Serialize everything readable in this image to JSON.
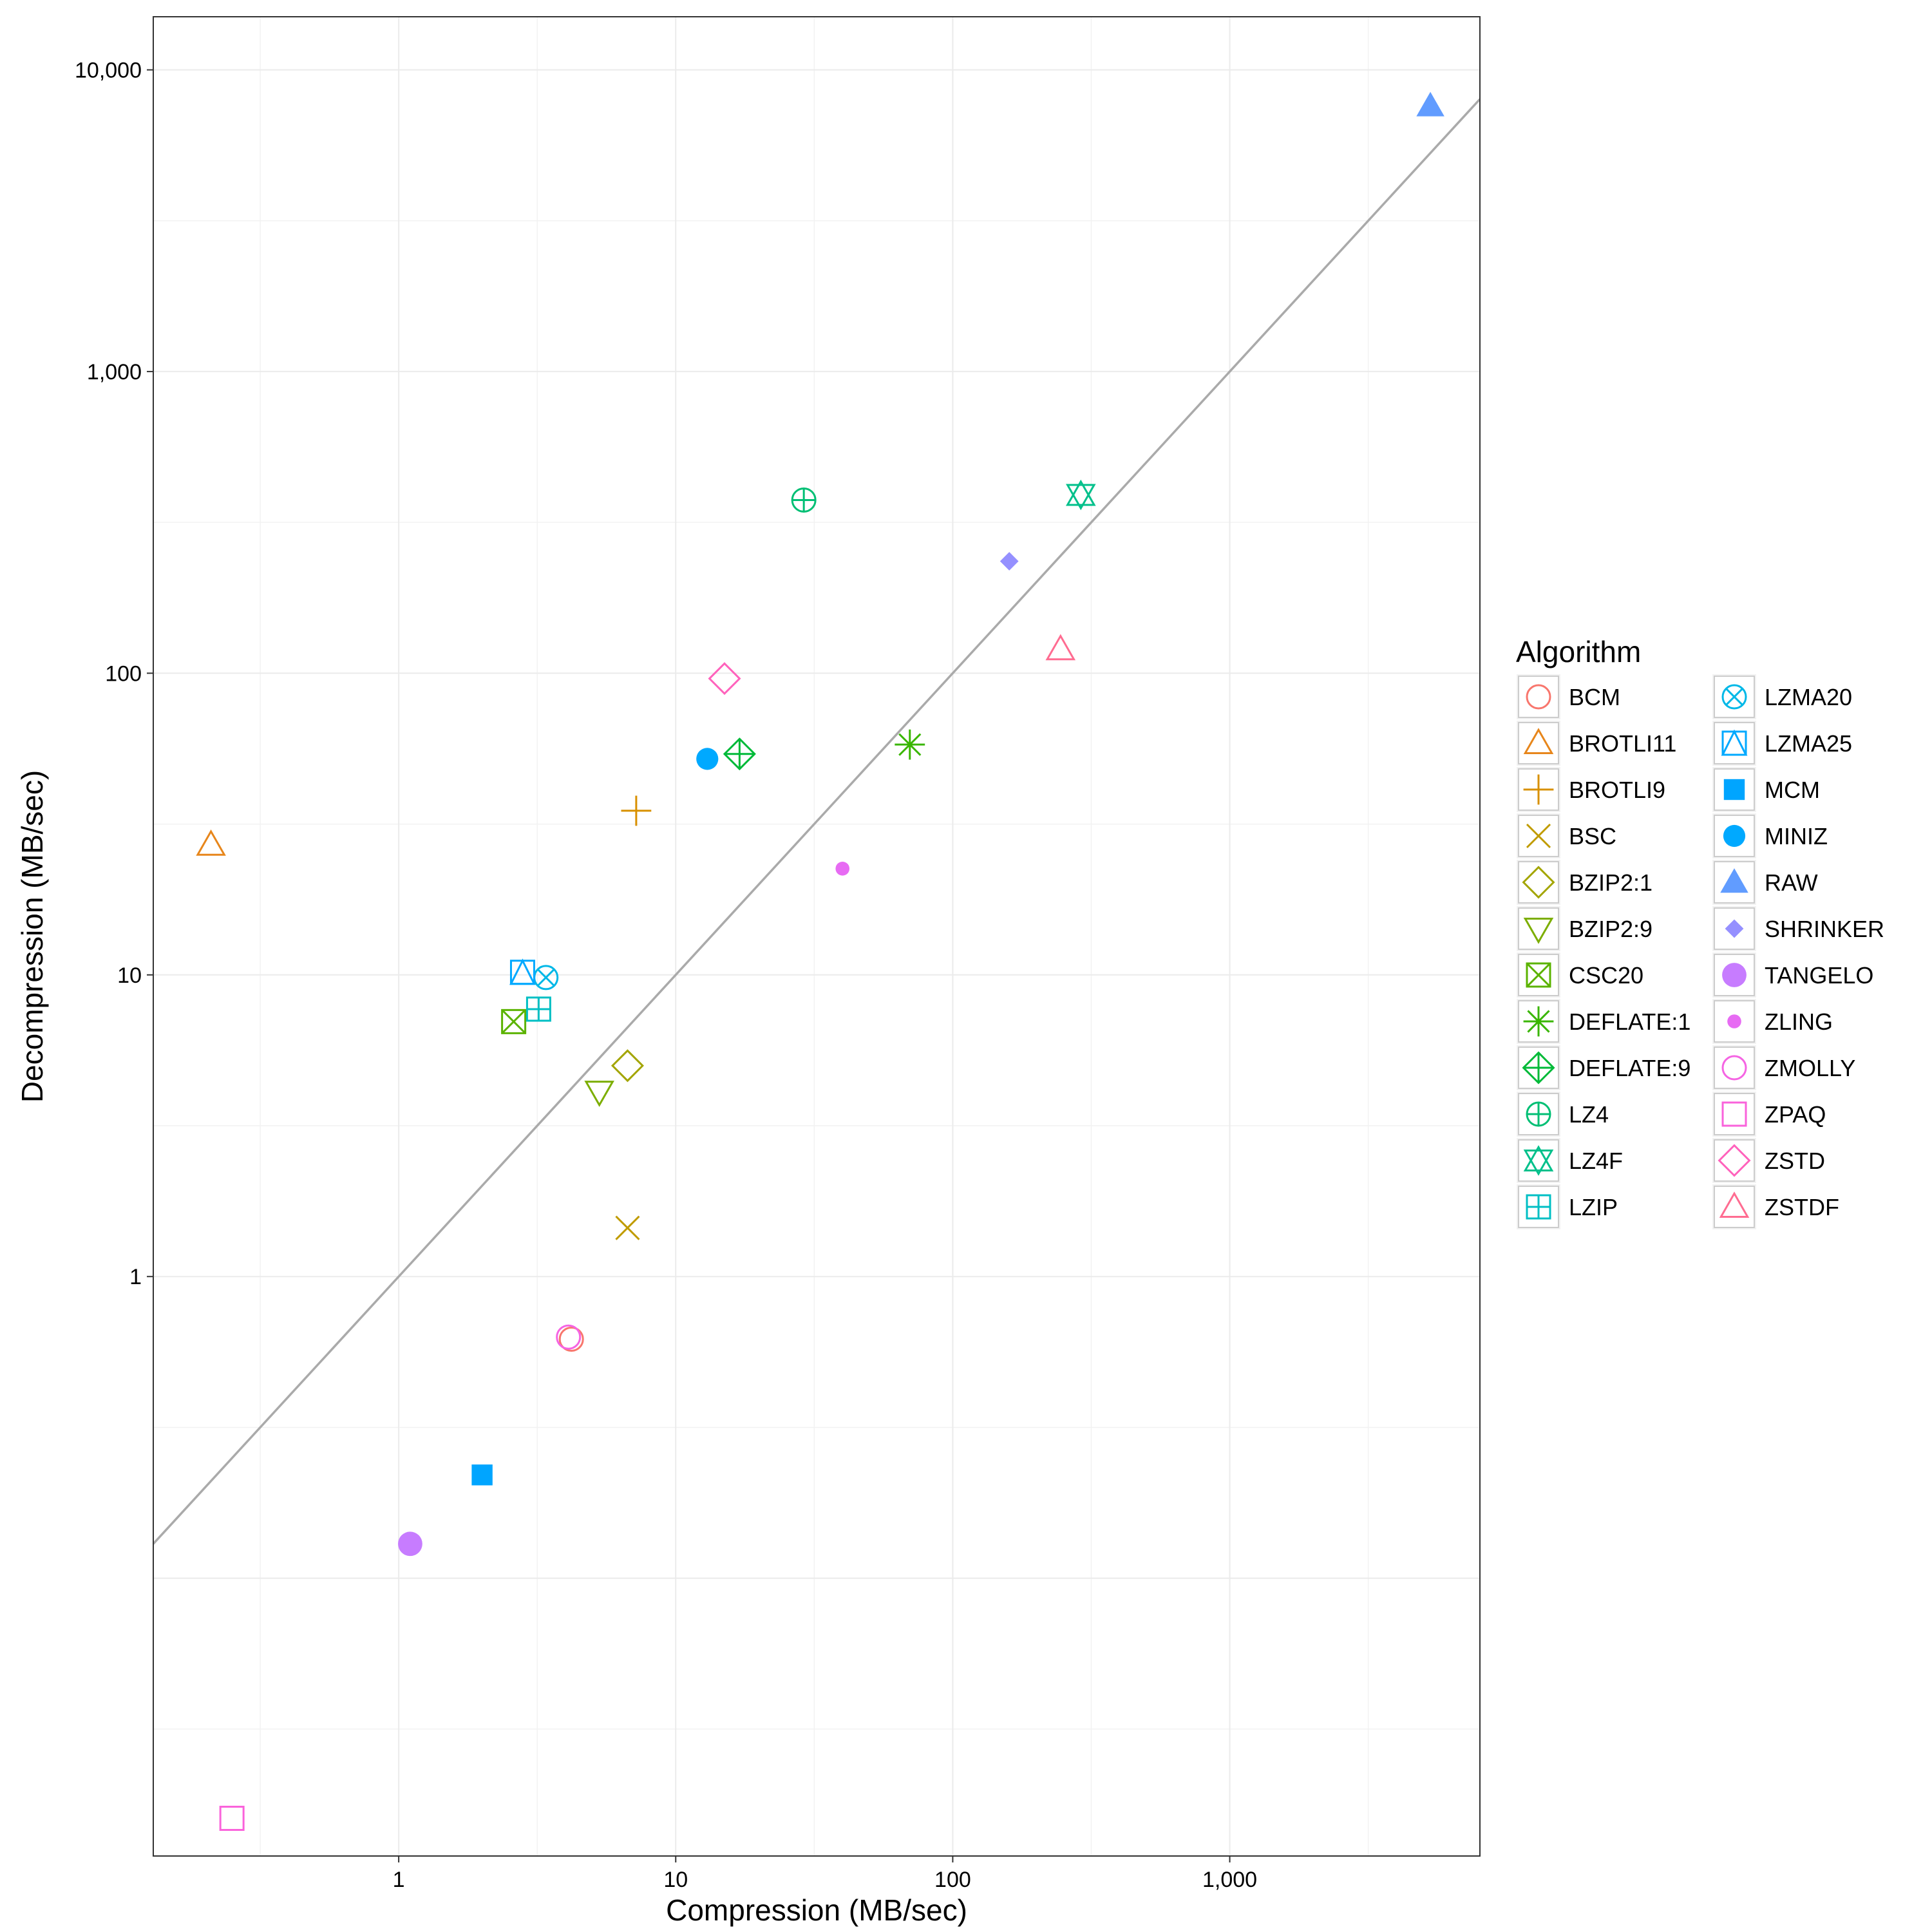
{
  "chart_data": {
    "type": "scatter",
    "title": "",
    "xlabel": "Compression (MB/sec)",
    "ylabel": "Decompression (MB/sec)",
    "xscale": "log10",
    "yscale": "log10",
    "xlim": [
      0.13,
      8000
    ],
    "ylim": [
      0.012,
      15000
    ],
    "x_ticks": [
      {
        "value": 1,
        "label": "1"
      },
      {
        "value": 10,
        "label": "10"
      },
      {
        "value": 100,
        "label": "100"
      },
      {
        "value": 1000,
        "label": "1,000"
      }
    ],
    "y_ticks": [
      {
        "value": 1,
        "label": "1"
      },
      {
        "value": 10,
        "label": "10"
      },
      {
        "value": 100,
        "label": "100"
      },
      {
        "value": 1000,
        "label": "1,000"
      },
      {
        "value": 10000,
        "label": "10,000"
      }
    ],
    "grid": true,
    "reference_line": {
      "description": "y = x",
      "color": "#aaaaaa"
    },
    "legend": {
      "title": "Algorithm",
      "position": "right",
      "columns": 2
    },
    "series": [
      {
        "name": "BCM",
        "x": 4.2,
        "y": 0.62,
        "shape": "circle-open",
        "color": "#F8766D"
      },
      {
        "name": "BROTLI11",
        "x": 0.21,
        "y": 27,
        "shape": "triangle-open",
        "color": "#E7861B"
      },
      {
        "name": "BROTLI9",
        "x": 7.2,
        "y": 35,
        "shape": "plus",
        "color": "#D89000"
      },
      {
        "name": "BSC",
        "x": 6.7,
        "y": 1.45,
        "shape": "cross",
        "color": "#C09B00"
      },
      {
        "name": "BZIP2:1",
        "x": 6.7,
        "y": 5.0,
        "shape": "diamond-open",
        "color": "#A3A500"
      },
      {
        "name": "BZIP2:9",
        "x": 5.3,
        "y": 4.1,
        "shape": "triangle-down-open",
        "color": "#7CAE00"
      },
      {
        "name": "CSC20",
        "x": 2.6,
        "y": 7.0,
        "shape": "square-cross",
        "color": "#5BB300"
      },
      {
        "name": "DEFLATE:1",
        "x": 70,
        "y": 58,
        "shape": "asterisk",
        "color": "#39B600"
      },
      {
        "name": "DEFLATE:9",
        "x": 17,
        "y": 54,
        "shape": "diamond-plus",
        "color": "#00BA38"
      },
      {
        "name": "LZ4",
        "x": 29,
        "y": 375,
        "shape": "circle-plus",
        "color": "#00BF74"
      },
      {
        "name": "LZ4F",
        "x": 290,
        "y": 390,
        "shape": "star-of-david",
        "color": "#00C08B"
      },
      {
        "name": "LZIP",
        "x": 3.2,
        "y": 7.7,
        "shape": "square-plus",
        "color": "#00BFC4"
      },
      {
        "name": "LZMA20",
        "x": 3.4,
        "y": 9.8,
        "shape": "circle-cross",
        "color": "#00B8E7"
      },
      {
        "name": "LZMA25",
        "x": 2.8,
        "y": 10.2,
        "shape": "square-triangle",
        "color": "#00A9FF"
      },
      {
        "name": "MCM",
        "x": 2.0,
        "y": 0.22,
        "shape": "square-filled",
        "color": "#00A5FF"
      },
      {
        "name": "MINIZ",
        "x": 13,
        "y": 52,
        "shape": "circle-filled",
        "color": "#00A9FF"
      },
      {
        "name": "RAW",
        "x": 5300,
        "y": 7600,
        "shape": "triangle-filled",
        "color": "#619CFF"
      },
      {
        "name": "SHRINKER",
        "x": 160,
        "y": 235,
        "shape": "diamond-filled",
        "color": "#9590FF"
      },
      {
        "name": "TANGELO",
        "x": 1.1,
        "y": 0.13,
        "shape": "circle-filled-large",
        "color": "#C77CFF"
      },
      {
        "name": "ZLING",
        "x": 40,
        "y": 22.5,
        "shape": "circle-filled-small",
        "color": "#E76BF3"
      },
      {
        "name": "ZMOLLY",
        "x": 4.1,
        "y": 0.63,
        "shape": "circle-open",
        "color": "#F564E3"
      },
      {
        "name": "ZPAQ",
        "x": 0.25,
        "y": 0.016,
        "shape": "square-open",
        "color": "#FA62DB"
      },
      {
        "name": "ZSTD",
        "x": 15,
        "y": 96,
        "shape": "diamond-open",
        "color": "#FF62BC"
      },
      {
        "name": "ZSTDF",
        "x": 245,
        "y": 120,
        "shape": "triangle-open",
        "color": "#FF6C91"
      }
    ]
  }
}
